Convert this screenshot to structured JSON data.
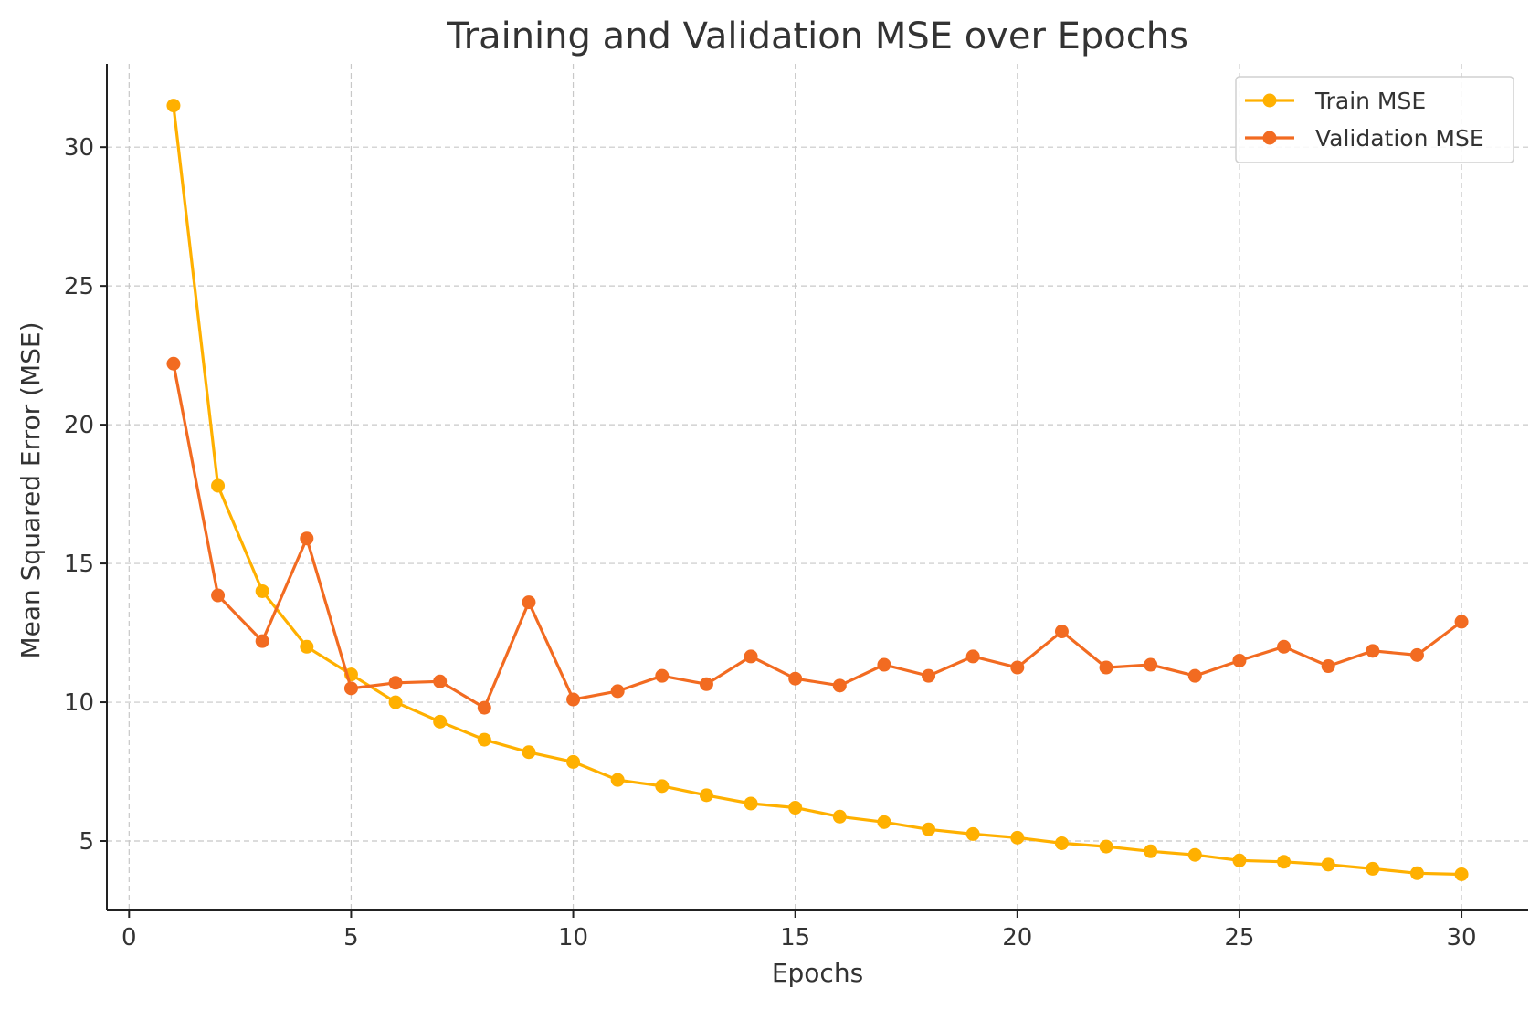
{
  "chart_data": {
    "type": "line",
    "title": "Training and Validation MSE over Epochs",
    "xlabel": "Epochs",
    "ylabel": "Mean Squared Error (MSE)",
    "xlim": [
      -0.5,
      31.5
    ],
    "ylim": [
      2.5,
      33.0
    ],
    "xticks": [
      0,
      5,
      10,
      15,
      20,
      25,
      30
    ],
    "yticks": [
      5,
      10,
      15,
      20,
      25,
      30
    ],
    "grid": true,
    "legend_position": "top-right",
    "x": [
      1,
      2,
      3,
      4,
      5,
      6,
      7,
      8,
      9,
      10,
      11,
      12,
      13,
      14,
      15,
      16,
      17,
      18,
      19,
      20,
      21,
      22,
      23,
      24,
      25,
      26,
      27,
      28,
      29,
      30
    ],
    "series": [
      {
        "name": "Train MSE",
        "color": "#FFB000",
        "values": [
          31.5,
          17.8,
          14.0,
          12.0,
          11.0,
          10.0,
          9.3,
          8.65,
          8.2,
          7.85,
          7.2,
          6.98,
          6.65,
          6.35,
          6.2,
          5.88,
          5.68,
          5.42,
          5.25,
          5.12,
          4.92,
          4.8,
          4.63,
          4.5,
          4.3,
          4.25,
          4.15,
          4.0,
          3.84,
          3.8
        ]
      },
      {
        "name": "Validation MSE",
        "color": "#F26B21",
        "values": [
          22.2,
          13.85,
          12.2,
          15.9,
          10.5,
          10.7,
          10.75,
          9.8,
          13.6,
          10.1,
          10.4,
          10.95,
          10.65,
          11.65,
          10.85,
          10.6,
          11.35,
          10.95,
          11.65,
          11.25,
          12.55,
          11.25,
          11.35,
          10.95,
          11.5,
          12.0,
          11.3,
          11.85,
          11.7,
          12.9
        ]
      }
    ]
  }
}
